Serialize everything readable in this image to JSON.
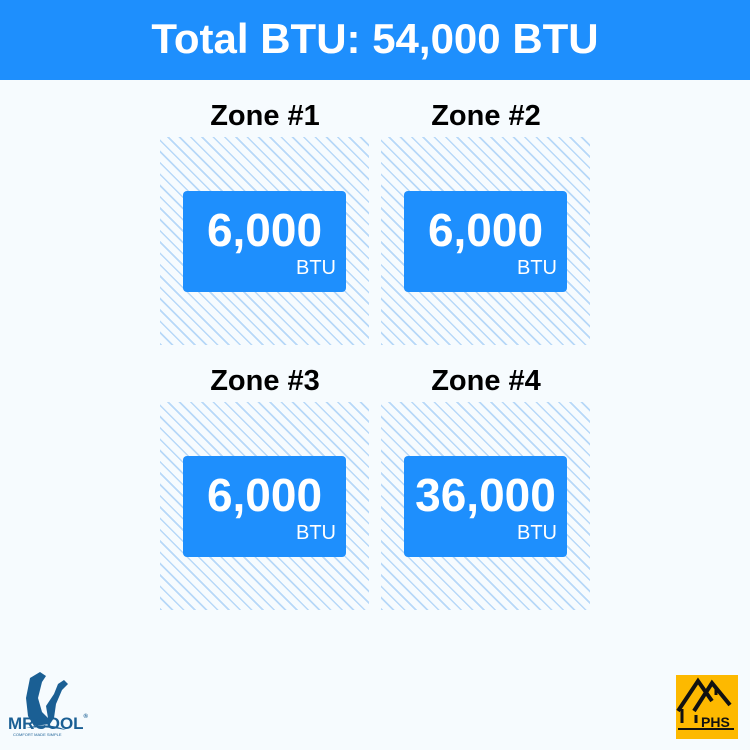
{
  "header": {
    "title": "Total BTU: 54,000 BTU"
  },
  "zones": [
    {
      "title": "Zone #1",
      "value": "6,000",
      "unit": "BTU"
    },
    {
      "title": "Zone #2",
      "value": "6,000",
      "unit": "BTU"
    },
    {
      "title": "Zone #3",
      "value": "6,000",
      "unit": "BTU"
    },
    {
      "title": "Zone #4",
      "value": "36,000",
      "unit": "BTU"
    }
  ],
  "logos": {
    "left": "MRCOOL",
    "left_tagline": "COMFORT MADE SIMPLE",
    "right": "PHS"
  },
  "colors": {
    "accent": "#1e8ffd",
    "background": "#f6fbfe",
    "logo_right_bg": "#fdb900"
  }
}
